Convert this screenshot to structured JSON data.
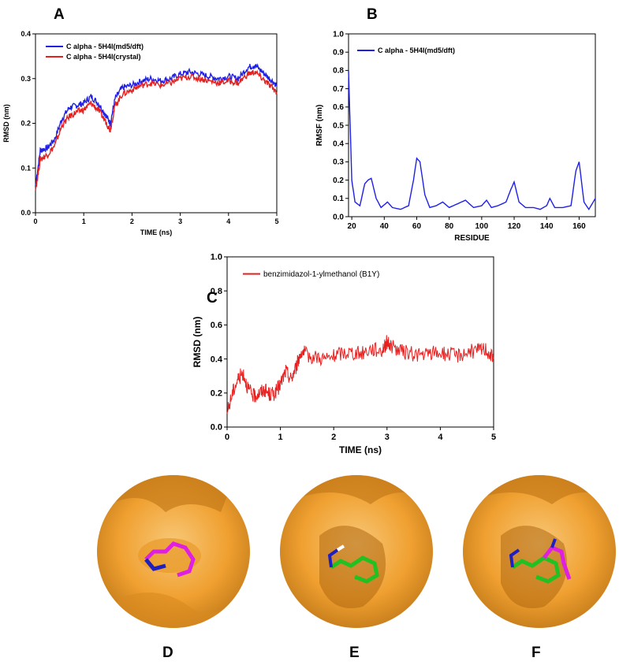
{
  "panels": {
    "A": "A",
    "B": "B",
    "C": "C",
    "D": "D",
    "E": "E",
    "F": "F"
  },
  "colors": {
    "blue": "#1f1fe6",
    "red": "#e61f1f",
    "orange": "#f2a640",
    "magenta": "#e020e0",
    "green": "#22c022",
    "navy": "#2020c0"
  },
  "chart_data": [
    {
      "id": "A",
      "type": "line",
      "xlabel": "TIME (ns)",
      "ylabel": "RMSD (nm)",
      "xlim": [
        0,
        5
      ],
      "ylim": [
        0,
        0.4
      ],
      "xticks": [
        "0",
        "1",
        "2",
        "3",
        "4",
        "5"
      ],
      "yticks": [
        "0.0",
        "0.1",
        "0.2",
        "0.3",
        "0.4"
      ],
      "legend_position": "top-left",
      "series": [
        {
          "name": "C alpha - 5H4I(md5/dft)",
          "color": "#1f1fe6",
          "x": [
            0,
            0.1,
            0.25,
            0.4,
            0.55,
            0.7,
            0.85,
            1.0,
            1.15,
            1.3,
            1.45,
            1.55,
            1.65,
            1.8,
            2.0,
            2.2,
            2.4,
            2.6,
            2.8,
            3.0,
            3.2,
            3.4,
            3.6,
            3.8,
            4.0,
            4.2,
            4.4,
            4.55,
            4.7,
            4.85,
            5.0
          ],
          "y": [
            0.06,
            0.14,
            0.145,
            0.165,
            0.21,
            0.235,
            0.24,
            0.245,
            0.26,
            0.245,
            0.22,
            0.2,
            0.255,
            0.28,
            0.285,
            0.295,
            0.3,
            0.295,
            0.3,
            0.31,
            0.315,
            0.31,
            0.305,
            0.3,
            0.305,
            0.3,
            0.325,
            0.33,
            0.315,
            0.3,
            0.285
          ]
        },
        {
          "name": "C alpha - 5H4I(crystal)",
          "color": "#e61f1f",
          "x": [
            0,
            0.1,
            0.25,
            0.4,
            0.55,
            0.7,
            0.85,
            1.0,
            1.15,
            1.3,
            1.45,
            1.55,
            1.65,
            1.8,
            2.0,
            2.2,
            2.4,
            2.6,
            2.8,
            3.0,
            3.2,
            3.4,
            3.6,
            3.8,
            4.0,
            4.2,
            4.4,
            4.55,
            4.7,
            4.85,
            5.0
          ],
          "y": [
            0.05,
            0.12,
            0.13,
            0.15,
            0.195,
            0.215,
            0.225,
            0.23,
            0.245,
            0.23,
            0.205,
            0.185,
            0.24,
            0.265,
            0.275,
            0.285,
            0.29,
            0.285,
            0.29,
            0.3,
            0.305,
            0.3,
            0.295,
            0.29,
            0.295,
            0.29,
            0.31,
            0.315,
            0.3,
            0.285,
            0.27
          ]
        }
      ]
    },
    {
      "id": "B",
      "type": "line",
      "xlabel": "RESIDUE",
      "ylabel": "RMSF (nm)",
      "xlim": [
        18,
        170
      ],
      "ylim": [
        0,
        1.0
      ],
      "xticks": [
        "20",
        "40",
        "60",
        "80",
        "100",
        "120",
        "140",
        "160"
      ],
      "yticks": [
        "0.0",
        "0.1",
        "0.2",
        "0.3",
        "0.4",
        "0.5",
        "0.6",
        "0.7",
        "0.8",
        "0.9",
        "1.0"
      ],
      "legend_position": "top-left",
      "series": [
        {
          "name": "C alpha - 5H4I(md5/dft)",
          "color": "#1f1fe6",
          "x": [
            18,
            19,
            20,
            22,
            25,
            28,
            30,
            32,
            35,
            38,
            42,
            45,
            50,
            55,
            58,
            60,
            62,
            65,
            68,
            72,
            76,
            80,
            85,
            90,
            95,
            100,
            103,
            106,
            110,
            115,
            118,
            120,
            123,
            127,
            132,
            136,
            140,
            142,
            145,
            150,
            155,
            158,
            160,
            163,
            166,
            170
          ],
          "y": [
            0.8,
            0.5,
            0.2,
            0.08,
            0.06,
            0.18,
            0.2,
            0.21,
            0.1,
            0.05,
            0.08,
            0.05,
            0.04,
            0.06,
            0.2,
            0.32,
            0.3,
            0.12,
            0.05,
            0.06,
            0.08,
            0.05,
            0.07,
            0.09,
            0.05,
            0.06,
            0.09,
            0.05,
            0.06,
            0.08,
            0.15,
            0.19,
            0.08,
            0.05,
            0.05,
            0.04,
            0.06,
            0.1,
            0.05,
            0.05,
            0.06,
            0.25,
            0.3,
            0.08,
            0.04,
            0.1
          ]
        }
      ]
    },
    {
      "id": "C",
      "type": "line",
      "xlabel": "TIME (ns)",
      "ylabel": "RMSD (nm)",
      "xlim": [
        0,
        5
      ],
      "ylim": [
        0,
        1.0
      ],
      "xticks": [
        "0",
        "1",
        "2",
        "3",
        "4",
        "5"
      ],
      "yticks": [
        "0.0",
        "0.2",
        "0.4",
        "0.6",
        "0.8",
        "1.0"
      ],
      "legend_position": "top-left",
      "series": [
        {
          "name": "benzimidazol-1-ylmethanol (B1Y)",
          "color": "#e61f1f",
          "x": [
            0,
            0.1,
            0.2,
            0.3,
            0.4,
            0.5,
            0.6,
            0.7,
            0.8,
            0.9,
            1.0,
            1.1,
            1.2,
            1.3,
            1.4,
            1.5,
            1.7,
            1.9,
            2.1,
            2.3,
            2.5,
            2.7,
            2.9,
            3.0,
            3.1,
            3.3,
            3.5,
            3.7,
            3.9,
            4.1,
            4.3,
            4.5,
            4.7,
            4.85,
            5.0
          ],
          "y": [
            0.08,
            0.2,
            0.28,
            0.32,
            0.22,
            0.18,
            0.2,
            0.22,
            0.19,
            0.2,
            0.25,
            0.33,
            0.28,
            0.36,
            0.45,
            0.42,
            0.41,
            0.4,
            0.43,
            0.44,
            0.43,
            0.46,
            0.45,
            0.5,
            0.47,
            0.44,
            0.43,
            0.42,
            0.44,
            0.43,
            0.42,
            0.44,
            0.45,
            0.46,
            0.4
          ]
        }
      ]
    }
  ]
}
